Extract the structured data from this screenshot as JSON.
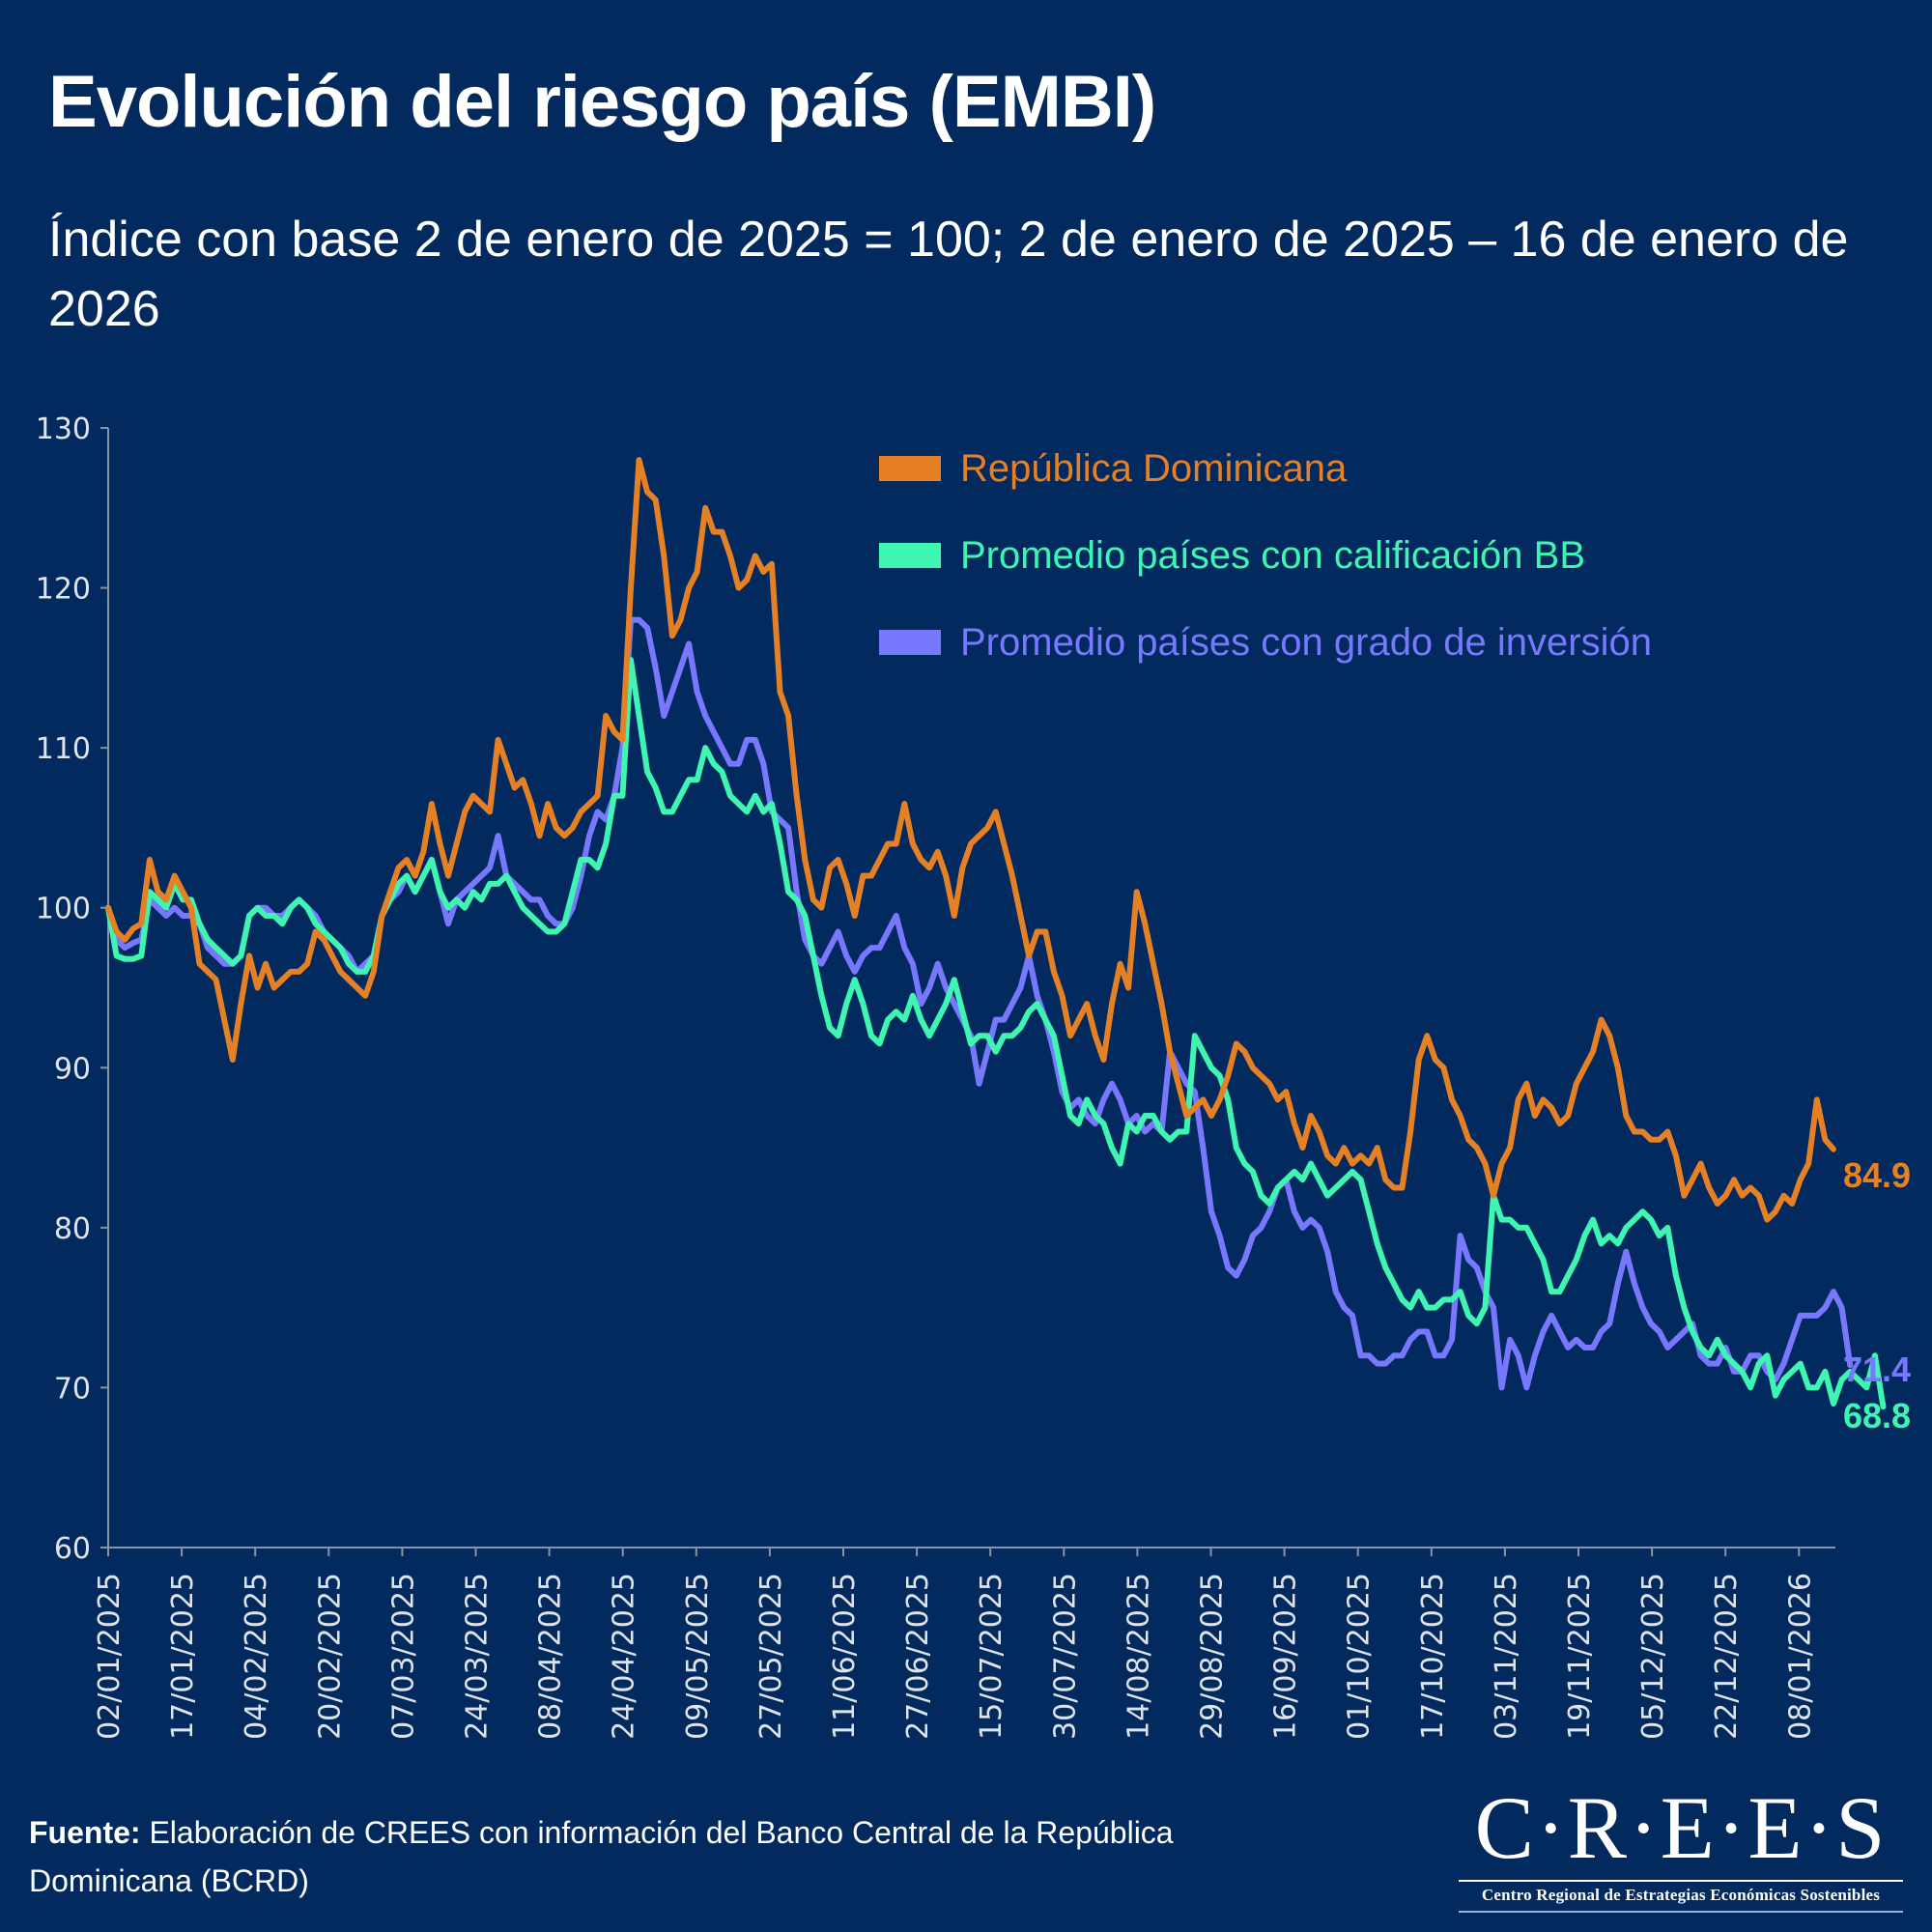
{
  "title": "Evolución del riesgo país (EMBI)",
  "subtitle": "Índice con base 2 de enero de 2025 = 100; 2 de enero de 2025 – 16 de enero de 2026",
  "footer": {
    "source_label": "Fuente:",
    "source_text": " Elaboración de CREES con información del Banco Central de la República Dominicana (BCRD)"
  },
  "logo": {
    "name": "C·R·E·E·S",
    "subtitle": "Centro Regional de Estrategias Económicas Sostenibles"
  },
  "colors": {
    "background": "#032a5e",
    "axis": "#8a93a6",
    "rd": "#e58025",
    "bb": "#3ef5b2",
    "ig": "#7878ff"
  },
  "chart_data": {
    "type": "line",
    "title": "Evolución del riesgo país (EMBI)",
    "subtitle": "Índice con base 2 de enero de 2025 = 100; 2 de enero de 2025 – 16 de enero de 2026",
    "xlabel": "",
    "ylabel": "",
    "ylim": [
      60,
      130
    ],
    "yticks": [
      60,
      70,
      80,
      90,
      100,
      110,
      120,
      130
    ],
    "grid": false,
    "legend_position": "top-right",
    "x_tick_labels": [
      "02/01/2025",
      "17/01/2025",
      "04/02/2025",
      "20/02/2025",
      "07/03/2025",
      "24/03/2025",
      "08/04/2025",
      "24/04/2025",
      "09/05/2025",
      "27/05/2025",
      "11/06/2025",
      "27/06/2025",
      "15/07/2025",
      "30/07/2025",
      "14/08/2025",
      "29/08/2025",
      "16/09/2025",
      "01/10/2025",
      "17/10/2025",
      "03/11/2025",
      "19/11/2025",
      "05/12/2025",
      "22/12/2025",
      "08/01/2026"
    ],
    "x_tick_step": 10,
    "series": [
      {
        "name": "República Dominicana",
        "color": "#e58025",
        "last_value_label": "84.9",
        "values": [
          100,
          98.5,
          98,
          98.7,
          99,
          103,
          101,
          100.5,
          102,
          101,
          100,
          96.5,
          96,
          95.5,
          93,
          90.5,
          94,
          97,
          95,
          96.5,
          95,
          95.5,
          96,
          96,
          96.5,
          98.5,
          98,
          97,
          96,
          95.5,
          95,
          94.5,
          96,
          99.5,
          101,
          102.5,
          103,
          102,
          103.5,
          106.5,
          104,
          102,
          104,
          106,
          107,
          106.5,
          106,
          110.5,
          109,
          107.5,
          108,
          106.5,
          104.5,
          106.5,
          105,
          104.5,
          105,
          106,
          106.5,
          107,
          112,
          111,
          110.5,
          120,
          128,
          126,
          125.5,
          122,
          117,
          118,
          120,
          121,
          125,
          123.5,
          123.5,
          122,
          120,
          120.5,
          122,
          121,
          121.5,
          113.5,
          112,
          107,
          103,
          100.5,
          100,
          102.5,
          103,
          101.5,
          99.5,
          102,
          102,
          103,
          104,
          104,
          106.5,
          104,
          103,
          102.5,
          103.5,
          102,
          99.5,
          102.5,
          104,
          104.5,
          105,
          106,
          104,
          102,
          99.5,
          97,
          98.5,
          98.5,
          96,
          94.5,
          92,
          93,
          94,
          92,
          90.5,
          94,
          96.5,
          95,
          101,
          99,
          96.5,
          94,
          91,
          89,
          87,
          87.5,
          88,
          87,
          88,
          89.5,
          91.5,
          91,
          90,
          89.5,
          89,
          88,
          88.5,
          86.5,
          85,
          87,
          86,
          84.5,
          84,
          85,
          84,
          84.5,
          84,
          85,
          83,
          82.5,
          82.5,
          86,
          90.5,
          92,
          90.5,
          90,
          88,
          87,
          85.5,
          85,
          84,
          82,
          84,
          85,
          88,
          89,
          87,
          88,
          87.5,
          86.5,
          87,
          89,
          90,
          91,
          93,
          92,
          90,
          87,
          86,
          86,
          85.5,
          85.5,
          86,
          84.5,
          82,
          83,
          84,
          82.5,
          81.5,
          82,
          83,
          82,
          82.5,
          82,
          80.5,
          81,
          82,
          81.5,
          83,
          84,
          88,
          85.5,
          84.9
        ]
      },
      {
        "name": "Promedio países con calificación BB",
        "color": "#3ef5b2",
        "last_value_label": "68.8",
        "values": [
          100,
          97,
          96.8,
          96.8,
          97,
          101,
          100.5,
          100,
          101.5,
          100.5,
          100.5,
          99,
          98,
          97.5,
          97,
          96.5,
          97,
          99.5,
          100,
          99.5,
          99.5,
          99,
          100,
          100.5,
          100,
          99,
          98.5,
          98,
          97.5,
          96.5,
          96,
          96,
          97,
          99.5,
          100.5,
          101.5,
          102,
          101,
          102,
          103,
          101,
          100,
          100.5,
          100,
          101,
          100.5,
          101.5,
          101.5,
          102,
          101,
          100,
          99.5,
          99,
          98.5,
          98.5,
          99,
          101,
          103,
          103,
          102.5,
          104,
          107,
          107,
          115.5,
          112,
          108.5,
          107.5,
          106,
          106,
          107,
          108,
          108,
          110,
          109,
          108.5,
          107,
          106.5,
          106,
          107,
          106,
          106.5,
          104,
          101,
          100.5,
          99.5,
          97,
          94.5,
          92.5,
          92,
          94,
          95.5,
          94,
          92,
          91.5,
          93,
          93.5,
          93,
          94.5,
          93,
          92,
          93,
          94,
          95.5,
          93.5,
          91.5,
          92,
          92,
          91,
          92,
          92,
          92.5,
          93.5,
          94,
          93,
          92,
          89.5,
          87,
          86.5,
          88,
          87,
          86.5,
          85,
          84,
          86.5,
          86,
          87,
          87,
          86,
          85.5,
          86,
          86,
          92,
          91,
          90,
          89.5,
          88,
          85,
          84,
          83.5,
          82,
          81.5,
          82.5,
          83,
          83.5,
          83,
          84,
          83,
          82,
          82.5,
          83,
          83.5,
          83,
          81,
          79,
          77.5,
          76.5,
          75.5,
          75,
          76,
          75,
          75,
          75.5,
          75.5,
          76,
          74.5,
          74,
          75,
          82,
          80.5,
          80.5,
          80,
          80,
          79,
          78,
          76,
          76,
          77,
          78,
          79.5,
          80.5,
          79,
          79.5,
          79,
          80,
          80.5,
          81,
          80.5,
          79.5,
          80,
          77,
          75,
          73.5,
          72.5,
          72,
          73,
          72,
          71.5,
          71,
          70,
          71.5,
          72,
          69.5,
          70.5,
          71,
          71.5,
          70,
          70,
          71,
          69,
          70.5,
          71,
          70.5,
          70,
          72,
          68.8
        ]
      },
      {
        "name": "Promedio países con grado de inversión",
        "color": "#7878ff",
        "last_value_label": "71.4",
        "values": [
          100,
          98,
          97.5,
          97.8,
          98,
          100.5,
          100,
          99.5,
          100,
          99.5,
          99.5,
          99,
          97.5,
          97,
          96.5,
          96.5,
          97,
          99.5,
          100,
          100,
          99.5,
          99.5,
          100,
          100.5,
          100,
          99.5,
          98.5,
          98,
          97.5,
          97,
          96,
          96.5,
          97,
          99.5,
          100.5,
          101,
          102,
          101,
          102,
          103,
          101,
          99,
          100.5,
          101,
          101.5,
          102,
          102.5,
          104.5,
          102,
          101.5,
          101,
          100.5,
          100.5,
          99.5,
          99,
          99,
          100,
          102,
          104.5,
          106,
          105.5,
          107,
          110,
          118,
          118,
          117.5,
          115,
          112,
          113.5,
          115,
          116.5,
          113.5,
          112,
          111,
          110,
          109,
          109,
          110.5,
          110.5,
          109,
          106,
          105.5,
          105,
          101,
          98,
          97,
          96.5,
          97.5,
          98.5,
          97,
          96,
          97,
          97.5,
          97.5,
          98.5,
          99.5,
          97.5,
          96.5,
          94,
          95,
          96.5,
          95,
          94,
          93,
          92,
          89,
          91,
          93,
          93,
          94,
          95,
          97,
          94.5,
          93,
          91,
          88.5,
          87.5,
          88,
          87,
          86.5,
          88,
          89,
          88,
          86.5,
          87,
          86,
          86.5,
          86,
          91,
          90,
          89,
          88.5,
          85,
          81,
          79.5,
          77.5,
          77,
          78,
          79.5,
          80,
          81,
          82.5,
          83,
          81,
          80,
          80.5,
          80,
          78.5,
          76,
          75,
          74.5,
          72,
          72,
          71.5,
          71.5,
          72,
          72,
          73,
          73.5,
          73.5,
          72,
          72,
          73,
          79.5,
          78,
          77.5,
          76,
          75,
          70,
          73,
          72,
          70,
          72,
          73.5,
          74.5,
          73.5,
          72.5,
          73,
          72.5,
          72.5,
          73.5,
          74,
          76.5,
          78.5,
          76.5,
          75,
          74,
          73.5,
          72.5,
          73,
          73.5,
          74,
          72,
          71.5,
          71.5,
          72.5,
          71,
          71,
          72,
          72,
          71,
          70.5,
          71.5,
          73,
          74.5,
          74.5,
          74.5,
          75,
          76,
          75,
          71.4
        ]
      }
    ]
  }
}
